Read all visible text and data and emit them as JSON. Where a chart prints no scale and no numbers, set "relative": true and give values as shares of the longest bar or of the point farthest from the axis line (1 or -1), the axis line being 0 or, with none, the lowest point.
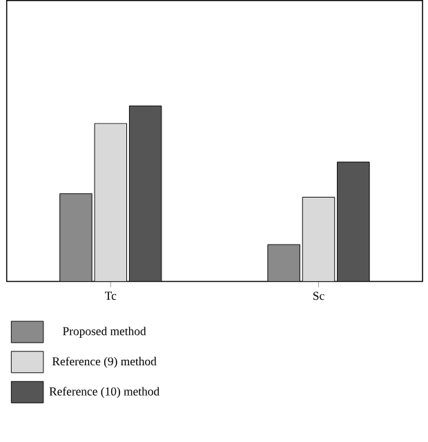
{
  "chart_data": {
    "type": "bar",
    "relative": true,
    "categories": [
      "Tc",
      "Sc"
    ],
    "series": [
      {
        "name": "Proposed method",
        "color": "#8a8a8a",
        "values": [
          0.5,
          0.21
        ]
      },
      {
        "name": "Reference (9) method",
        "color": "#d9d9d9",
        "values": [
          0.9,
          0.48
        ]
      },
      {
        "name": "Reference (10) method",
        "color": "#555555",
        "values": [
          1,
          0.68
        ]
      }
    ],
    "legend": "bottom"
  }
}
